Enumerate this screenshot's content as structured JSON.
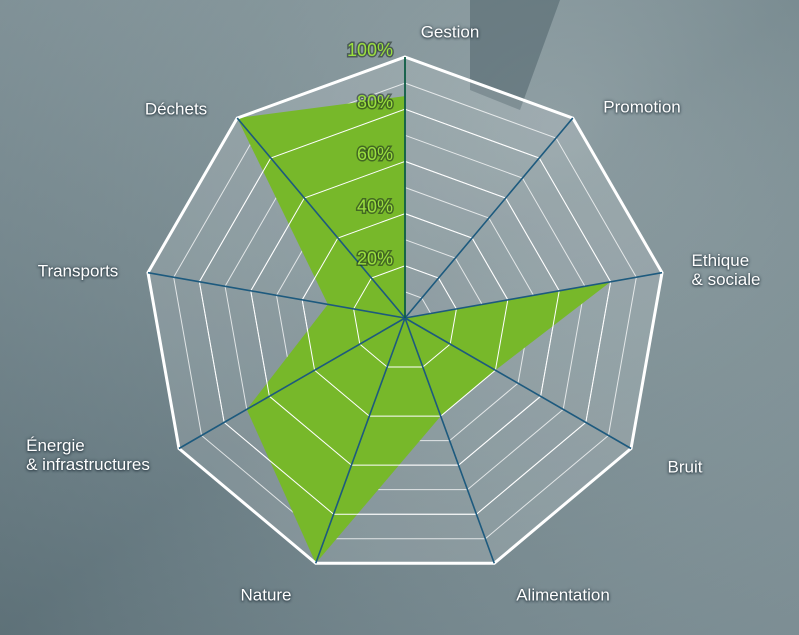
{
  "chart_data": {
    "type": "radar",
    "categories": [
      "Gestion",
      "Promotion",
      "Ethique\n& sociale",
      "Bruit",
      "Alimentation",
      "Nature",
      "Énergie\n& infrastructures",
      "Transports",
      "Déchets"
    ],
    "values": [
      85,
      0,
      80,
      40,
      40,
      100,
      70,
      30,
      100
    ],
    "color": "#77b82a",
    "ylim": [
      0,
      100
    ],
    "yticks": [
      {
        "value": 20,
        "label": "20%"
      },
      {
        "value": 40,
        "label": "40%"
      },
      {
        "value": 60,
        "label": "60%"
      },
      {
        "value": 80,
        "label": "80%"
      },
      {
        "value": 100,
        "label": "100%"
      }
    ],
    "grid": true
  }
}
